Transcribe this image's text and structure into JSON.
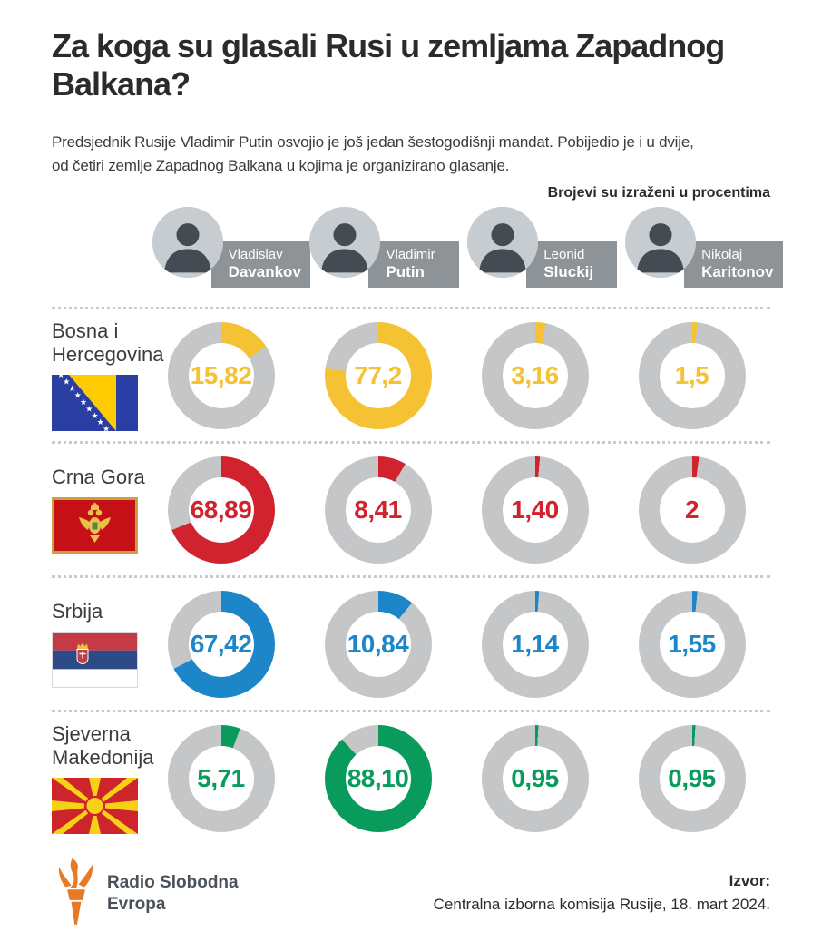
{
  "page": {
    "title": "Za koga su glasali Rusi u zemljama Zapadnog Balkana?",
    "intro_line1": "Predsjednik Rusije Vladimir Putin osvojio je još jedan šestogodišnji mandat. Pobijedio je i u dvije,",
    "intro_line2": "od četiri zemlje Zapadnog Balkana u kojima je organizirano glasanje.",
    "note": "Brojevi su izraženi u procentima"
  },
  "candidates": [
    {
      "first": "Vladislav",
      "last": "Davankov"
    },
    {
      "first": "Vladimir",
      "last": "Putin"
    },
    {
      "first": "Leonid",
      "last": "Sluckij"
    },
    {
      "first": "Nikolaj",
      "last": "Karitonov"
    }
  ],
  "chart_data": {
    "type": "pie",
    "subtype": "donut_grid",
    "unit": "percent",
    "note": "Brojevi su izraženi u procentima",
    "legend_position": "top - candidate photos as column headers",
    "columns": [
      "Vladislav Davankov",
      "Vladimir Putin",
      "Leonid Sluckij",
      "Nikolaj Karitonov"
    ],
    "rows": [
      {
        "country": "Bosna i Hercegovina",
        "flag": "bih",
        "color": "#F5C233",
        "values": [
          15.82,
          77.2,
          3.16,
          1.5
        ],
        "labels": [
          "15,82",
          "77,2",
          "3,16",
          "1,5"
        ]
      },
      {
        "country": "Crna Gora",
        "flag": "mne",
        "color": "#D0232E",
        "values": [
          68.89,
          8.41,
          1.4,
          2
        ],
        "labels": [
          "68,89",
          "8,41",
          "1,40",
          "2"
        ]
      },
      {
        "country": "Srbija",
        "flag": "srb",
        "color": "#1C86C8",
        "values": [
          67.42,
          10.84,
          1.14,
          1.55
        ],
        "labels": [
          "67,42",
          "10,84",
          "1,14",
          "1,55"
        ]
      },
      {
        "country": "Sjeverna Makedonija",
        "flag": "mkd",
        "color": "#089B5B",
        "values": [
          5.71,
          88.1,
          0.95,
          0.95
        ],
        "labels": [
          "5,71",
          "88,10",
          "0,95",
          "0,95"
        ]
      }
    ]
  },
  "footer": {
    "brand_line1": "Radio Slobodna",
    "brand_line2": "Evropa",
    "source_label": "Izvor:",
    "source_text": "Centralna izborna komisija Rusije, 18. mart 2024."
  },
  "colors": {
    "ring_gray": "#C5C6C7",
    "badge_gray": "#8D9397",
    "accent_yellow": "#F5C233",
    "accent_red": "#D0232E",
    "accent_blue": "#1C86C8",
    "accent_green": "#089B5B",
    "logo_orange": "#E87A25",
    "brand_text": "#4A5159"
  }
}
